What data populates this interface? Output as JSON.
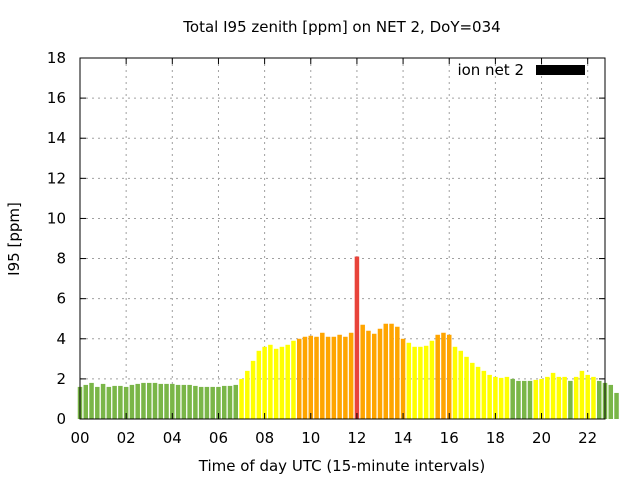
{
  "chart_data": {
    "type": "bar",
    "title": "Total I95 zenith [ppm] on NET 2, DoY=034",
    "xlabel": "Time of day UTC (15-minute intervals)",
    "ylabel": "I95 [ppm]",
    "ylim": [
      0,
      18
    ],
    "yticks": [
      0,
      2,
      4,
      6,
      8,
      10,
      12,
      14,
      16,
      18
    ],
    "xlim": [
      0,
      22.75
    ],
    "xticks": [
      0,
      2,
      4,
      6,
      8,
      10,
      12,
      14,
      16,
      18,
      20,
      22
    ],
    "xtick_labels": [
      "00",
      "02",
      "04",
      "06",
      "08",
      "10",
      "12",
      "14",
      "16",
      "18",
      "20",
      "22"
    ],
    "grid": true,
    "legend": {
      "label": "ion net 2",
      "color": "#000000",
      "placement": "top-right"
    },
    "interval_hours": 0.25,
    "color_scale": {
      "low": "#7ab648",
      "moderate": "#ffff00",
      "elevated": "#ffa500",
      "high": "#e8433a"
    },
    "series": [
      {
        "name": "ion net 2",
        "values": [
          1.6,
          1.7,
          1.8,
          1.6,
          1.75,
          1.6,
          1.65,
          1.65,
          1.6,
          1.7,
          1.75,
          1.8,
          1.8,
          1.8,
          1.75,
          1.75,
          1.75,
          1.7,
          1.7,
          1.7,
          1.65,
          1.6,
          1.6,
          1.6,
          1.6,
          1.65,
          1.65,
          1.7,
          2.0,
          2.4,
          2.9,
          3.4,
          3.6,
          3.7,
          3.5,
          3.6,
          3.7,
          3.9,
          4.0,
          4.1,
          4.15,
          4.1,
          4.3,
          4.1,
          4.1,
          4.2,
          4.1,
          4.3,
          8.1,
          4.7,
          4.4,
          4.25,
          4.5,
          4.75,
          4.75,
          4.6,
          4.0,
          3.8,
          3.6,
          3.6,
          3.65,
          3.9,
          4.2,
          4.3,
          4.2,
          3.6,
          3.4,
          3.1,
          2.8,
          2.6,
          2.4,
          2.2,
          2.1,
          2.05,
          2.1,
          2.0,
          1.9,
          1.9,
          1.9,
          1.95,
          2.0,
          2.1,
          2.3,
          2.1,
          2.1,
          1.9,
          2.1,
          2.4,
          2.2,
          2.1,
          1.9,
          1.8,
          1.7,
          1.3
        ],
        "levels": [
          "low",
          "low",
          "low",
          "low",
          "low",
          "low",
          "low",
          "low",
          "low",
          "low",
          "low",
          "low",
          "low",
          "low",
          "low",
          "low",
          "low",
          "low",
          "low",
          "low",
          "low",
          "low",
          "low",
          "low",
          "low",
          "low",
          "low",
          "low",
          "moderate",
          "moderate",
          "moderate",
          "moderate",
          "moderate",
          "moderate",
          "moderate",
          "moderate",
          "moderate",
          "moderate",
          "elevated",
          "elevated",
          "elevated",
          "elevated",
          "elevated",
          "elevated",
          "elevated",
          "elevated",
          "elevated",
          "elevated",
          "high",
          "elevated",
          "elevated",
          "elevated",
          "elevated",
          "elevated",
          "elevated",
          "elevated",
          "elevated",
          "moderate",
          "moderate",
          "moderate",
          "moderate",
          "moderate",
          "elevated",
          "elevated",
          "elevated",
          "moderate",
          "moderate",
          "moderate",
          "moderate",
          "moderate",
          "moderate",
          "moderate",
          "moderate",
          "moderate",
          "moderate",
          "low",
          "low",
          "low",
          "low",
          "moderate",
          "moderate",
          "moderate",
          "moderate",
          "moderate",
          "moderate",
          "low",
          "moderate",
          "moderate",
          "moderate",
          "moderate",
          "low",
          "low",
          "low",
          "low"
        ]
      }
    ]
  }
}
